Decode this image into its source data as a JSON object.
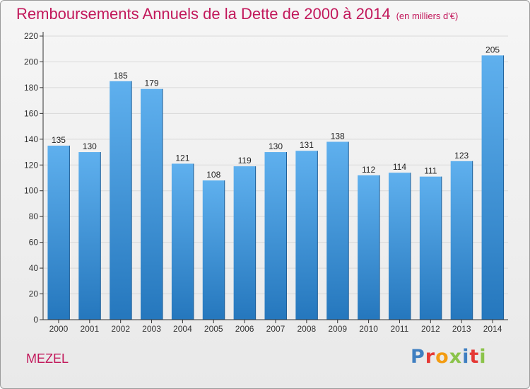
{
  "title": "Remboursements Annuels de la Dette de 2000 à 2014",
  "subtitle": "(en milliers d'€)",
  "commune": "MEZEL",
  "logo": {
    "text": "Proxiti",
    "letters": [
      {
        "char": "P",
        "color": "#3f7fc1"
      },
      {
        "char": "r",
        "color": "#e53935"
      },
      {
        "char": "o",
        "color": "#f39c12"
      },
      {
        "char": "x",
        "color": "#8bc34a"
      },
      {
        "char": "i",
        "color": "#3f7fc1"
      },
      {
        "char": "t",
        "color": "#e53935"
      },
      {
        "char": "i",
        "color": "#8bc34a"
      }
    ]
  },
  "colors": {
    "title": "#c2185b",
    "bar_top": "#5fb0ee",
    "bar_bottom": "#2577bd",
    "grid": "#d9d9d9",
    "axis": "#333333"
  },
  "chart_data": {
    "type": "bar",
    "title": "Remboursements Annuels de la Dette de 2000 à 2014",
    "subtitle": "(en milliers d'€)",
    "categories": [
      "2000",
      "2001",
      "2002",
      "2003",
      "2004",
      "2005",
      "2006",
      "2007",
      "2008",
      "2009",
      "2010",
      "2011",
      "2012",
      "2013",
      "2014"
    ],
    "values": [
      135,
      130,
      185,
      179,
      121,
      108,
      119,
      130,
      131,
      138,
      112,
      114,
      111,
      123,
      205
    ],
    "ylim": [
      0,
      220
    ],
    "yticks": [
      0,
      20,
      40,
      60,
      80,
      100,
      120,
      140,
      160,
      180,
      200,
      220
    ],
    "grid": true,
    "xlabel": "",
    "ylabel": ""
  }
}
